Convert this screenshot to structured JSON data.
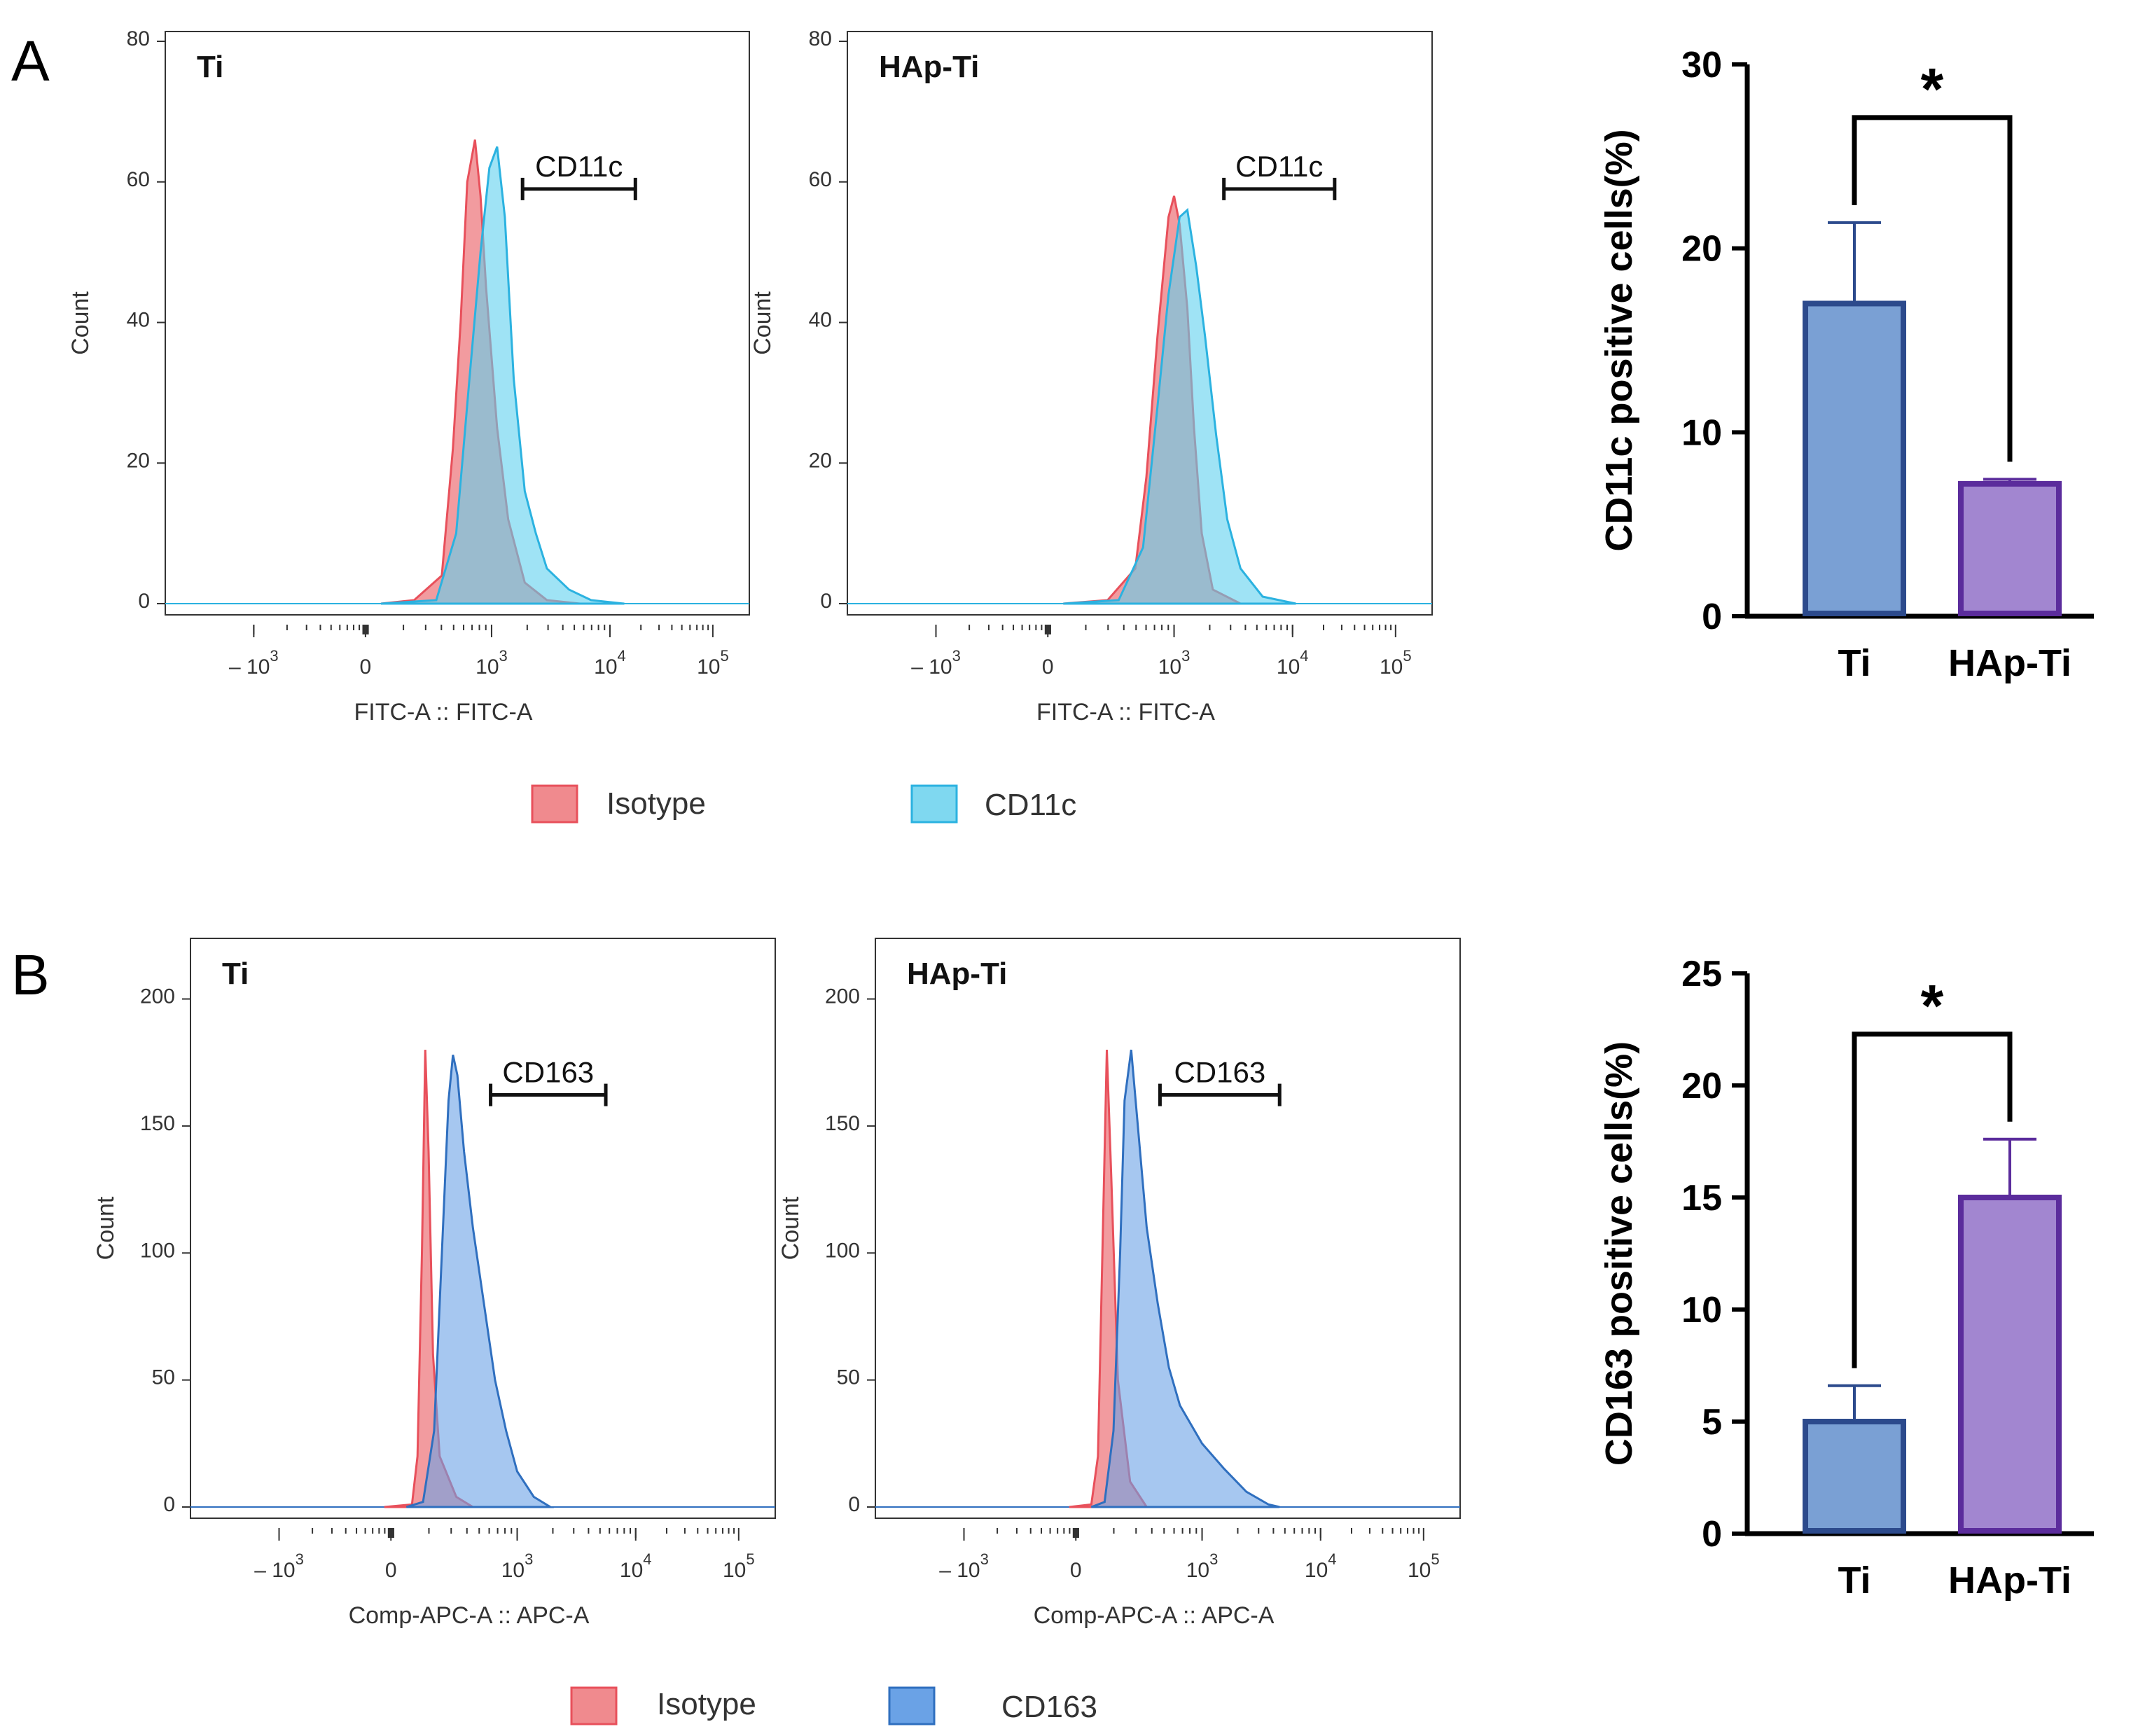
{
  "colors": {
    "isotype_fill": "#f08a8e",
    "isotype_stroke": "#e8505b",
    "cd11c_fill": "#5fd0ee",
    "cd11c_stroke": "#2bb2e0",
    "cd163_fill": "#6aa2e6",
    "cd163_stroke": "#2f6fbf",
    "overlap_fill": "#8c9eb0",
    "bar_ti_fill": "#7aa0d4",
    "bar_ti_stroke": "#2c4a8c",
    "bar_hap_fill": "#a286d0",
    "bar_hap_stroke": "#5b2c9c"
  },
  "panels": {
    "A": {
      "letter": "A",
      "legend": {
        "isotype": "Isotype",
        "marker": "CD11c"
      }
    },
    "B": {
      "letter": "B",
      "legend": {
        "isotype": "Isotype",
        "marker": "CD163"
      }
    }
  },
  "chart_data": [
    {
      "type": "area",
      "id": "A-ti",
      "title": "Ti",
      "gate_label": "CD11c",
      "xlabel": "FITC-A :: FITC-A",
      "ylabel": "Count",
      "ylim": [
        0,
        80
      ],
      "yticks": [
        "0",
        "20",
        "40",
        "60",
        "80"
      ],
      "xticks": [
        {
          "base": "– 10",
          "exp": "3"
        },
        {
          "base": "0",
          "exp": ""
        },
        {
          "base": "10",
          "exp": "3"
        },
        {
          "base": "10",
          "exp": "4"
        },
        {
          "base": "10",
          "exp": "5"
        }
      ],
      "gate_range_logicle": [
        3.28,
        4.3
      ],
      "series": [
        {
          "name": "Isotype",
          "x": [
            2.0,
            2.3,
            2.55,
            2.65,
            2.72,
            2.78,
            2.85,
            2.9,
            2.95,
            3.05,
            3.15,
            3.3,
            3.5,
            3.8
          ],
          "y": [
            0,
            0.5,
            4,
            22,
            40,
            60,
            66,
            58,
            45,
            25,
            12,
            3,
            0.5,
            0
          ]
        },
        {
          "name": "CD11c",
          "x": [
            2.0,
            2.5,
            2.68,
            2.8,
            2.9,
            2.98,
            3.05,
            3.12,
            3.2,
            3.3,
            3.4,
            3.5,
            3.7,
            3.9,
            4.2
          ],
          "y": [
            0,
            0.5,
            10,
            32,
            50,
            62,
            65,
            55,
            32,
            16,
            10,
            5,
            2,
            0.5,
            0
          ]
        }
      ]
    },
    {
      "type": "area",
      "id": "A-hap",
      "title": "HAp-Ti",
      "gate_label": "CD11c",
      "xlabel": "FITC-A :: FITC-A",
      "ylabel": "Count",
      "ylim": [
        0,
        80
      ],
      "yticks": [
        "0",
        "20",
        "40",
        "60",
        "80"
      ],
      "xticks": [
        {
          "base": "– 10",
          "exp": "3"
        },
        {
          "base": "0",
          "exp": ""
        },
        {
          "base": "10",
          "exp": "3"
        },
        {
          "base": "10",
          "exp": "4"
        },
        {
          "base": "10",
          "exp": "5"
        }
      ],
      "gate_range_logicle": [
        3.45,
        4.45
      ],
      "series": [
        {
          "name": "Isotype",
          "x": [
            2.0,
            2.4,
            2.65,
            2.75,
            2.85,
            2.95,
            3.0,
            3.05,
            3.12,
            3.18,
            3.25,
            3.35,
            3.6
          ],
          "y": [
            0,
            0.5,
            5,
            18,
            38,
            55,
            58,
            54,
            42,
            25,
            10,
            2,
            0
          ]
        },
        {
          "name": "CD11c",
          "x": [
            2.0,
            2.5,
            2.72,
            2.85,
            2.95,
            3.05,
            3.12,
            3.2,
            3.28,
            3.38,
            3.48,
            3.6,
            3.8,
            4.1
          ],
          "y": [
            0,
            0.5,
            8,
            28,
            44,
            55,
            56,
            48,
            38,
            24,
            12,
            5,
            1,
            0
          ]
        }
      ]
    },
    {
      "type": "bar",
      "id": "A-bar",
      "categories": [
        "Ti",
        "HAp-Ti"
      ],
      "values": [
        17,
        7.2
      ],
      "errors": [
        4.4,
        0.25
      ],
      "ylabel": "CD11c positive cells(%)",
      "ylim": [
        0,
        30
      ],
      "yticks": [
        "0",
        "10",
        "20",
        "30"
      ],
      "significance": "*"
    },
    {
      "type": "area",
      "id": "B-ti",
      "title": "Ti",
      "gate_label": "CD163",
      "xlabel": "Comp-APC-A :: APC-A",
      "ylabel": "Count",
      "ylim": [
        0,
        220
      ],
      "yticks": [
        "0",
        "50",
        "100",
        "150",
        "200"
      ],
      "xticks": [
        {
          "base": "– 10",
          "exp": "3"
        },
        {
          "base": "0",
          "exp": ""
        },
        {
          "base": "10",
          "exp": "3"
        },
        {
          "base": "10",
          "exp": "4"
        },
        {
          "base": "10",
          "exp": "5"
        }
      ],
      "gate_range_logicle": [
        2.76,
        3.8
      ],
      "series": [
        {
          "name": "Isotype",
          "x": [
            1.8,
            2.05,
            2.1,
            2.14,
            2.17,
            2.2,
            2.24,
            2.3,
            2.45,
            2.6
          ],
          "y": [
            0,
            1,
            20,
            100,
            180,
            140,
            60,
            20,
            4,
            0
          ]
        },
        {
          "name": "CD163",
          "x": [
            2.0,
            2.15,
            2.25,
            2.32,
            2.38,
            2.42,
            2.46,
            2.52,
            2.6,
            2.7,
            2.8,
            2.9,
            3.0,
            3.15,
            3.3
          ],
          "y": [
            0,
            2,
            30,
            100,
            160,
            178,
            170,
            140,
            110,
            80,
            50,
            30,
            14,
            4,
            0
          ]
        }
      ]
    },
    {
      "type": "area",
      "id": "B-hap",
      "title": "HAp-Ti",
      "gate_label": "CD163",
      "xlabel": "Comp-APC-A :: APC-A",
      "ylabel": "Count",
      "ylim": [
        0,
        220
      ],
      "yticks": [
        "0",
        "50",
        "100",
        "150",
        "200"
      ],
      "xticks": [
        {
          "base": "– 10",
          "exp": "3"
        },
        {
          "base": "0",
          "exp": ""
        },
        {
          "base": "10",
          "exp": "3"
        },
        {
          "base": "10",
          "exp": "4"
        },
        {
          "base": "10",
          "exp": "5"
        }
      ],
      "gate_range_logicle": [
        2.62,
        3.7
      ],
      "series": [
        {
          "name": "Isotype",
          "x": [
            1.8,
            2.0,
            2.06,
            2.1,
            2.14,
            2.18,
            2.24,
            2.35,
            2.5
          ],
          "y": [
            0,
            1,
            20,
            100,
            180,
            130,
            50,
            10,
            0
          ]
        },
        {
          "name": "CD163",
          "x": [
            2.0,
            2.12,
            2.2,
            2.26,
            2.3,
            2.36,
            2.42,
            2.5,
            2.6,
            2.7,
            2.8,
            3.0,
            3.2,
            3.4,
            3.6,
            3.7
          ],
          "y": [
            0,
            2,
            30,
            100,
            160,
            180,
            150,
            110,
            80,
            55,
            40,
            25,
            15,
            6,
            1,
            0
          ]
        }
      ]
    },
    {
      "type": "bar",
      "id": "B-bar",
      "categories": [
        "Ti",
        "HAp-Ti"
      ],
      "values": [
        5,
        15
      ],
      "errors": [
        1.6,
        2.6
      ],
      "ylabel": "CD163 positive cells(%)",
      "ylim": [
        0,
        25
      ],
      "yticks": [
        "0",
        "5",
        "10",
        "15",
        "20",
        "25"
      ],
      "significance": "*"
    }
  ]
}
